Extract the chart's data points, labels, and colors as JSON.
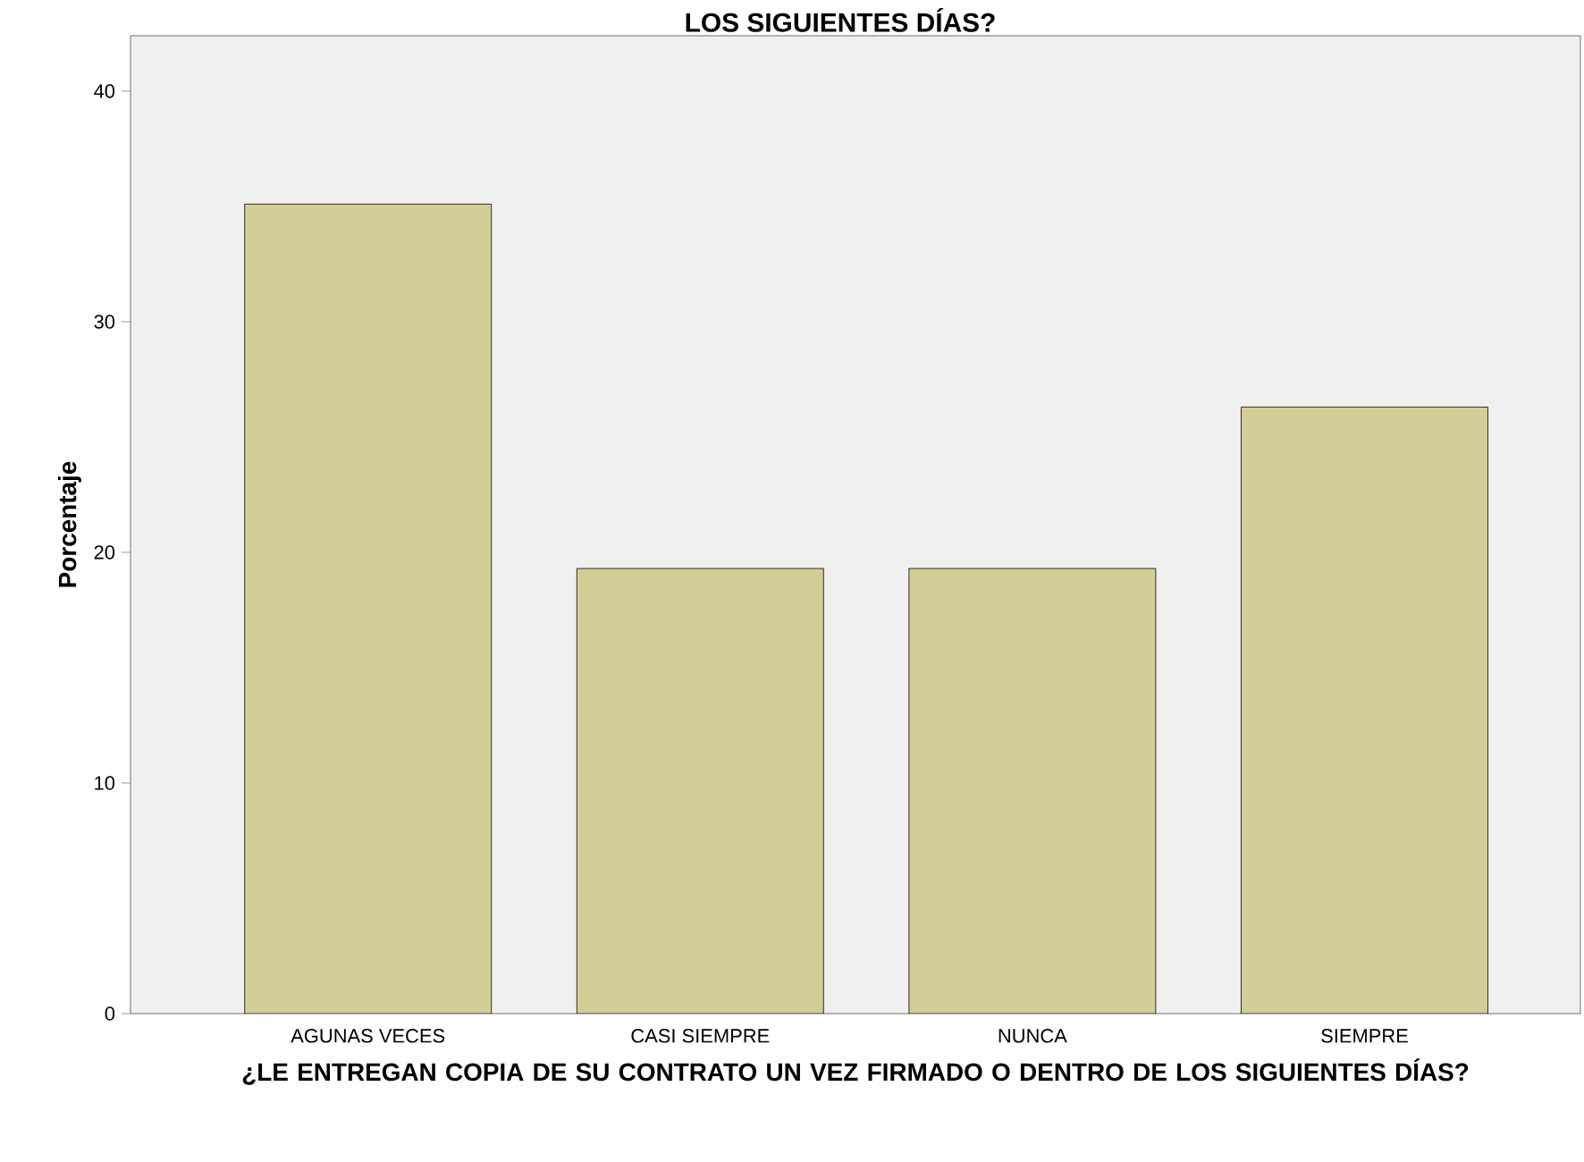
{
  "chart_data": {
    "type": "bar",
    "title": "LOS SIGUIENTES DÍAS?",
    "xlabel": "¿LE ENTREGAN COPIA DE SU CONTRATO UN VEZ FIRMADO O DENTRO DE LOS SIGUIENTES DÍAS?",
    "ylabel": "Porcentaje",
    "categories": [
      "AGUNAS VECES",
      "CASI SIEMPRE",
      "NUNCA",
      "SIEMPRE"
    ],
    "values": [
      35.1,
      19.3,
      19.3,
      26.3
    ],
    "color": "#d3ce97",
    "ylim": [
      0,
      42.4
    ],
    "yticks": [
      0,
      10,
      20,
      30,
      40
    ],
    "grid": false
  }
}
